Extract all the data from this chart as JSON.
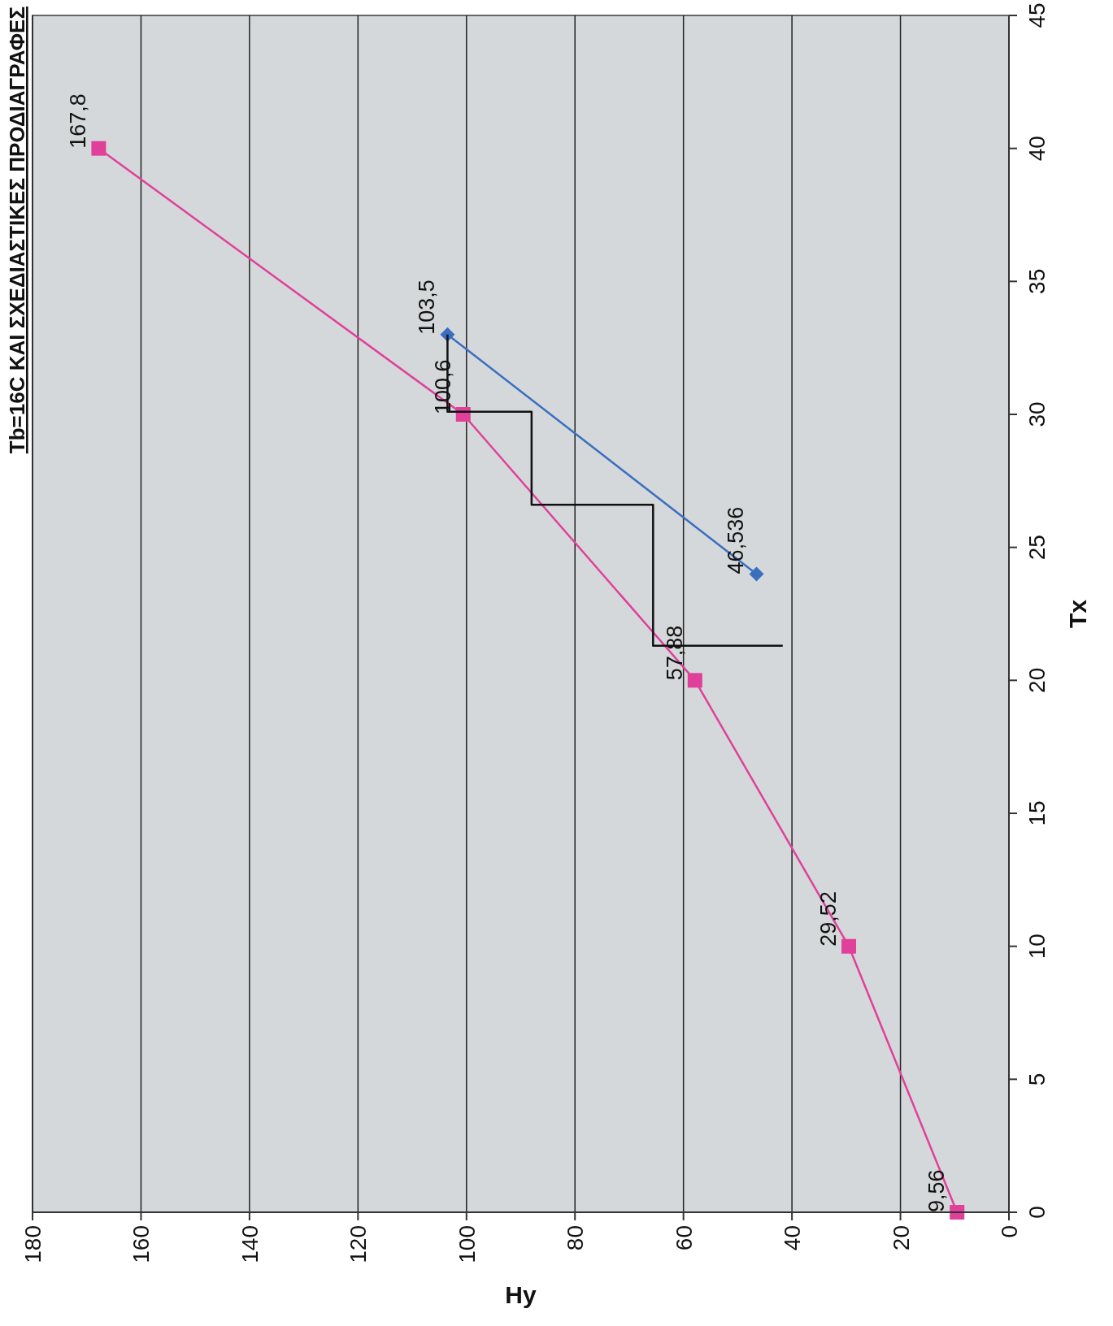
{
  "chart_data": {
    "type": "line",
    "title": "Tb=16C ΚΑΙ ΣΧΕΔΙΑΣΤΙΚΕΣ ΠΡΟΔΙΑΓΡΑΦΕΣ",
    "xlabel": "Hy",
    "ylabel": "Tx",
    "xlim": [
      180,
      0
    ],
    "xticks": [
      180,
      160,
      140,
      120,
      100,
      80,
      60,
      40,
      20,
      0
    ],
    "ylim": [
      0,
      45
    ],
    "yticks": [
      0,
      5,
      10,
      15,
      20,
      25,
      30,
      35,
      40,
      45
    ],
    "grid": "x",
    "series": [
      {
        "color": "#e0409a",
        "marker": "square",
        "x": [
          9.56,
          29.52,
          57.88,
          100.6,
          167.8
        ],
        "values": [
          0,
          10,
          20,
          30,
          40
        ]
      },
      {
        "color": "#3a6fc0",
        "marker": "diamond",
        "x": [
          46.536,
          103.5
        ],
        "values": [
          24,
          33
        ]
      },
      {
        "color": "#111111",
        "marker": "none",
        "x": [
          103.5,
          103.5,
          88,
          88,
          65.6,
          65.6,
          41.7
        ],
        "values": [
          33,
          30.1,
          30.1,
          26.6,
          26.6,
          21.3,
          21.3
        ]
      }
    ],
    "annotations": [
      {
        "text": "9,56",
        "x": 9.56,
        "y": 0
      },
      {
        "text": "29,52",
        "x": 29.52,
        "y": 10
      },
      {
        "text": "57,88",
        "x": 57.88,
        "y": 20
      },
      {
        "text": "100,6",
        "x": 100.6,
        "y": 30
      },
      {
        "text": "167,8",
        "x": 167.8,
        "y": 40
      },
      {
        "text": "46,536",
        "x": 46.536,
        "y": 24
      },
      {
        "text": "103,5",
        "x": 103.5,
        "y": 33
      }
    ]
  }
}
